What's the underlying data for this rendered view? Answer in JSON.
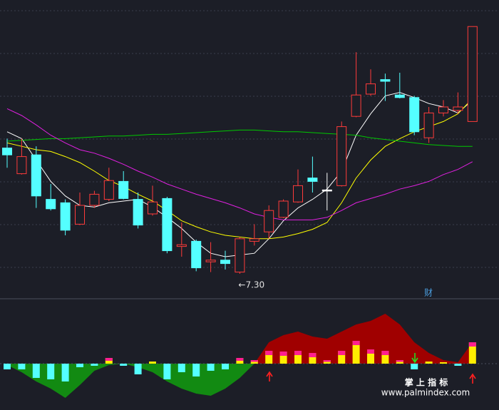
{
  "chart_data": [
    {
      "type": "candlestick",
      "ylim": [
        7.0,
        10.5
      ],
      "open": [
        8.77,
        8.47,
        8.69,
        8.17,
        8.13,
        7.88,
        8.1,
        8.17,
        8.38,
        8.17,
        8.0,
        8.18,
        7.62,
        7.68,
        7.44,
        7.46,
        7.32,
        7.68,
        7.79,
        7.96,
        8.14,
        8.42,
        8.28,
        8.33,
        9.14,
        9.4,
        9.57,
        9.39,
        9.36,
        8.89,
        9.18,
        9.21,
        9.08
      ],
      "high": [
        8.88,
        8.88,
        8.79,
        8.35,
        8.17,
        8.25,
        8.27,
        8.54,
        8.5,
        8.25,
        8.33,
        8.2,
        7.9,
        7.7,
        7.67,
        7.57,
        7.73,
        7.88,
        8.1,
        8.17,
        8.52,
        8.67,
        8.48,
        9.08,
        9.89,
        9.69,
        9.64,
        9.65,
        9.38,
        9.25,
        9.33,
        9.42,
        10.19
      ],
      "low": [
        8.54,
        8.46,
        8.07,
        8.04,
        7.75,
        7.87,
        8.07,
        8.15,
        8.17,
        7.83,
        7.98,
        7.54,
        7.5,
        7.33,
        7.32,
        7.35,
        7.3,
        7.63,
        7.71,
        7.95,
        8.13,
        8.25,
        8.04,
        8.32,
        9.13,
        9.38,
        9.32,
        9.35,
        8.92,
        8.83,
        9.14,
        9.17,
        9.08
      ],
      "close": [
        8.69,
        8.67,
        8.21,
        8.06,
        7.81,
        8.1,
        8.23,
        8.39,
        8.18,
        7.87,
        8.14,
        7.57,
        7.64,
        7.37,
        7.46,
        7.42,
        7.71,
        7.71,
        8.04,
        8.15,
        8.33,
        8.38,
        8.28,
        9.02,
        9.39,
        9.52,
        9.55,
        9.36,
        8.96,
        9.18,
        9.25,
        9.25,
        10.19
      ],
      "up_color": "#ff3b3b",
      "down_color": "#54ffff",
      "flat_color": "#ffffff",
      "series": [
        {
          "color": "#ffffff",
          "values": [
            8.96,
            8.88,
            8.63,
            8.38,
            8.21,
            8.1,
            8.08,
            8.13,
            8.15,
            8.17,
            8.08,
            7.96,
            7.83,
            7.67,
            7.54,
            7.5,
            7.52,
            7.54,
            7.71,
            7.92,
            8.07,
            8.17,
            8.29,
            8.5,
            8.92,
            9.17,
            9.38,
            9.42,
            9.36,
            9.29,
            9.25,
            9.18,
            9.33
          ]
        },
        {
          "color": "#ffff00",
          "values": [
            8.83,
            8.79,
            8.75,
            8.73,
            8.67,
            8.6,
            8.5,
            8.39,
            8.32,
            8.23,
            8.15,
            8.04,
            7.92,
            7.85,
            7.79,
            7.75,
            7.73,
            7.71,
            7.71,
            7.73,
            7.77,
            7.82,
            7.9,
            8.13,
            8.42,
            8.63,
            8.79,
            8.88,
            8.96,
            9.02,
            9.08,
            9.17,
            9.35
          ]
        },
        {
          "color": "#00c800",
          "values": [
            8.85,
            8.86,
            8.87,
            8.88,
            8.88,
            8.89,
            8.9,
            8.91,
            8.91,
            8.92,
            8.93,
            8.93,
            8.94,
            8.95,
            8.96,
            8.97,
            8.98,
            8.98,
            8.97,
            8.96,
            8.96,
            8.95,
            8.94,
            8.93,
            8.92,
            8.89,
            8.87,
            8.85,
            8.83,
            8.81,
            8.8,
            8.79,
            8.79
          ]
        },
        {
          "color": "#e020e0",
          "values": [
            9.23,
            9.15,
            9.04,
            8.92,
            8.83,
            8.75,
            8.71,
            8.65,
            8.58,
            8.5,
            8.43,
            8.35,
            8.29,
            8.23,
            8.18,
            8.13,
            8.07,
            8.0,
            7.96,
            7.93,
            7.93,
            7.93,
            7.96,
            8.04,
            8.13,
            8.18,
            8.23,
            8.29,
            8.33,
            8.38,
            8.46,
            8.52,
            8.61
          ]
        }
      ],
      "annotations": [
        {
          "text": "←7.30",
          "value": 7.3,
          "index": 16
        },
        {
          "text": "财"
        }
      ]
    },
    {
      "type": "bar",
      "ylim": [
        -0.65,
        0.9
      ],
      "values": [
        -0.08,
        -0.08,
        -0.2,
        -0.22,
        -0.25,
        -0.05,
        -0.03,
        0.08,
        -0.03,
        -0.15,
        0.03,
        -0.22,
        -0.12,
        -0.18,
        -0.1,
        -0.08,
        0.08,
        0.05,
        0.18,
        0.17,
        0.18,
        0.15,
        0.05,
        0.18,
        0.32,
        0.2,
        0.18,
        0.05,
        -0.08,
        0.03,
        0.02,
        -0.03,
        0.3
      ],
      "pos_color": "#ffee00",
      "neg_color": "#54ffff",
      "cap_color": "#ff2090",
      "area": [
        -0.02,
        -0.12,
        -0.25,
        -0.35,
        -0.48,
        -0.3,
        -0.1,
        -0.02,
        0,
        -0.05,
        -0.12,
        -0.25,
        -0.35,
        -0.42,
        -0.45,
        -0.35,
        -0.2,
        0,
        0.3,
        0.4,
        0.45,
        0.38,
        0.35,
        0.45,
        0.55,
        0.6,
        0.7,
        0.55,
        0.3,
        0.15,
        0.05,
        0.02,
        0.3
      ],
      "area_pos_color": "#a00000",
      "area_neg_color": "#128a12"
    }
  ],
  "watermark": {
    "title": "掌 上 指 标",
    "url": "www.palmindex.com"
  }
}
